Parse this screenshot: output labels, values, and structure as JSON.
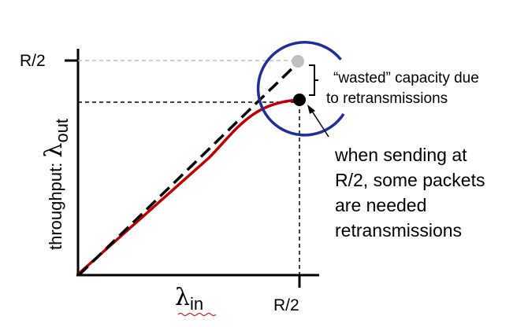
{
  "y_tick_label": "R/2",
  "x_tick_label": "R/2",
  "y_axis_label_prefix": "throughput: ",
  "lambda_symbol": "λ",
  "y_axis_subscript": "out",
  "x_axis_subscript": "in",
  "annotation_wasted": [
    "“wasted” capacity due",
    "to retransmissions"
  ],
  "annotation_note": [
    "when sending at",
    "R/2, some packets",
    "are needed",
    "retransmissions"
  ],
  "colors": {
    "curve": "#c00000",
    "circle": "#1f2f9a",
    "ideal_point": "#bfbfbf",
    "actual_point": "#000000",
    "axes": "#000000",
    "guide_grey": "#bfbfbf"
  }
}
